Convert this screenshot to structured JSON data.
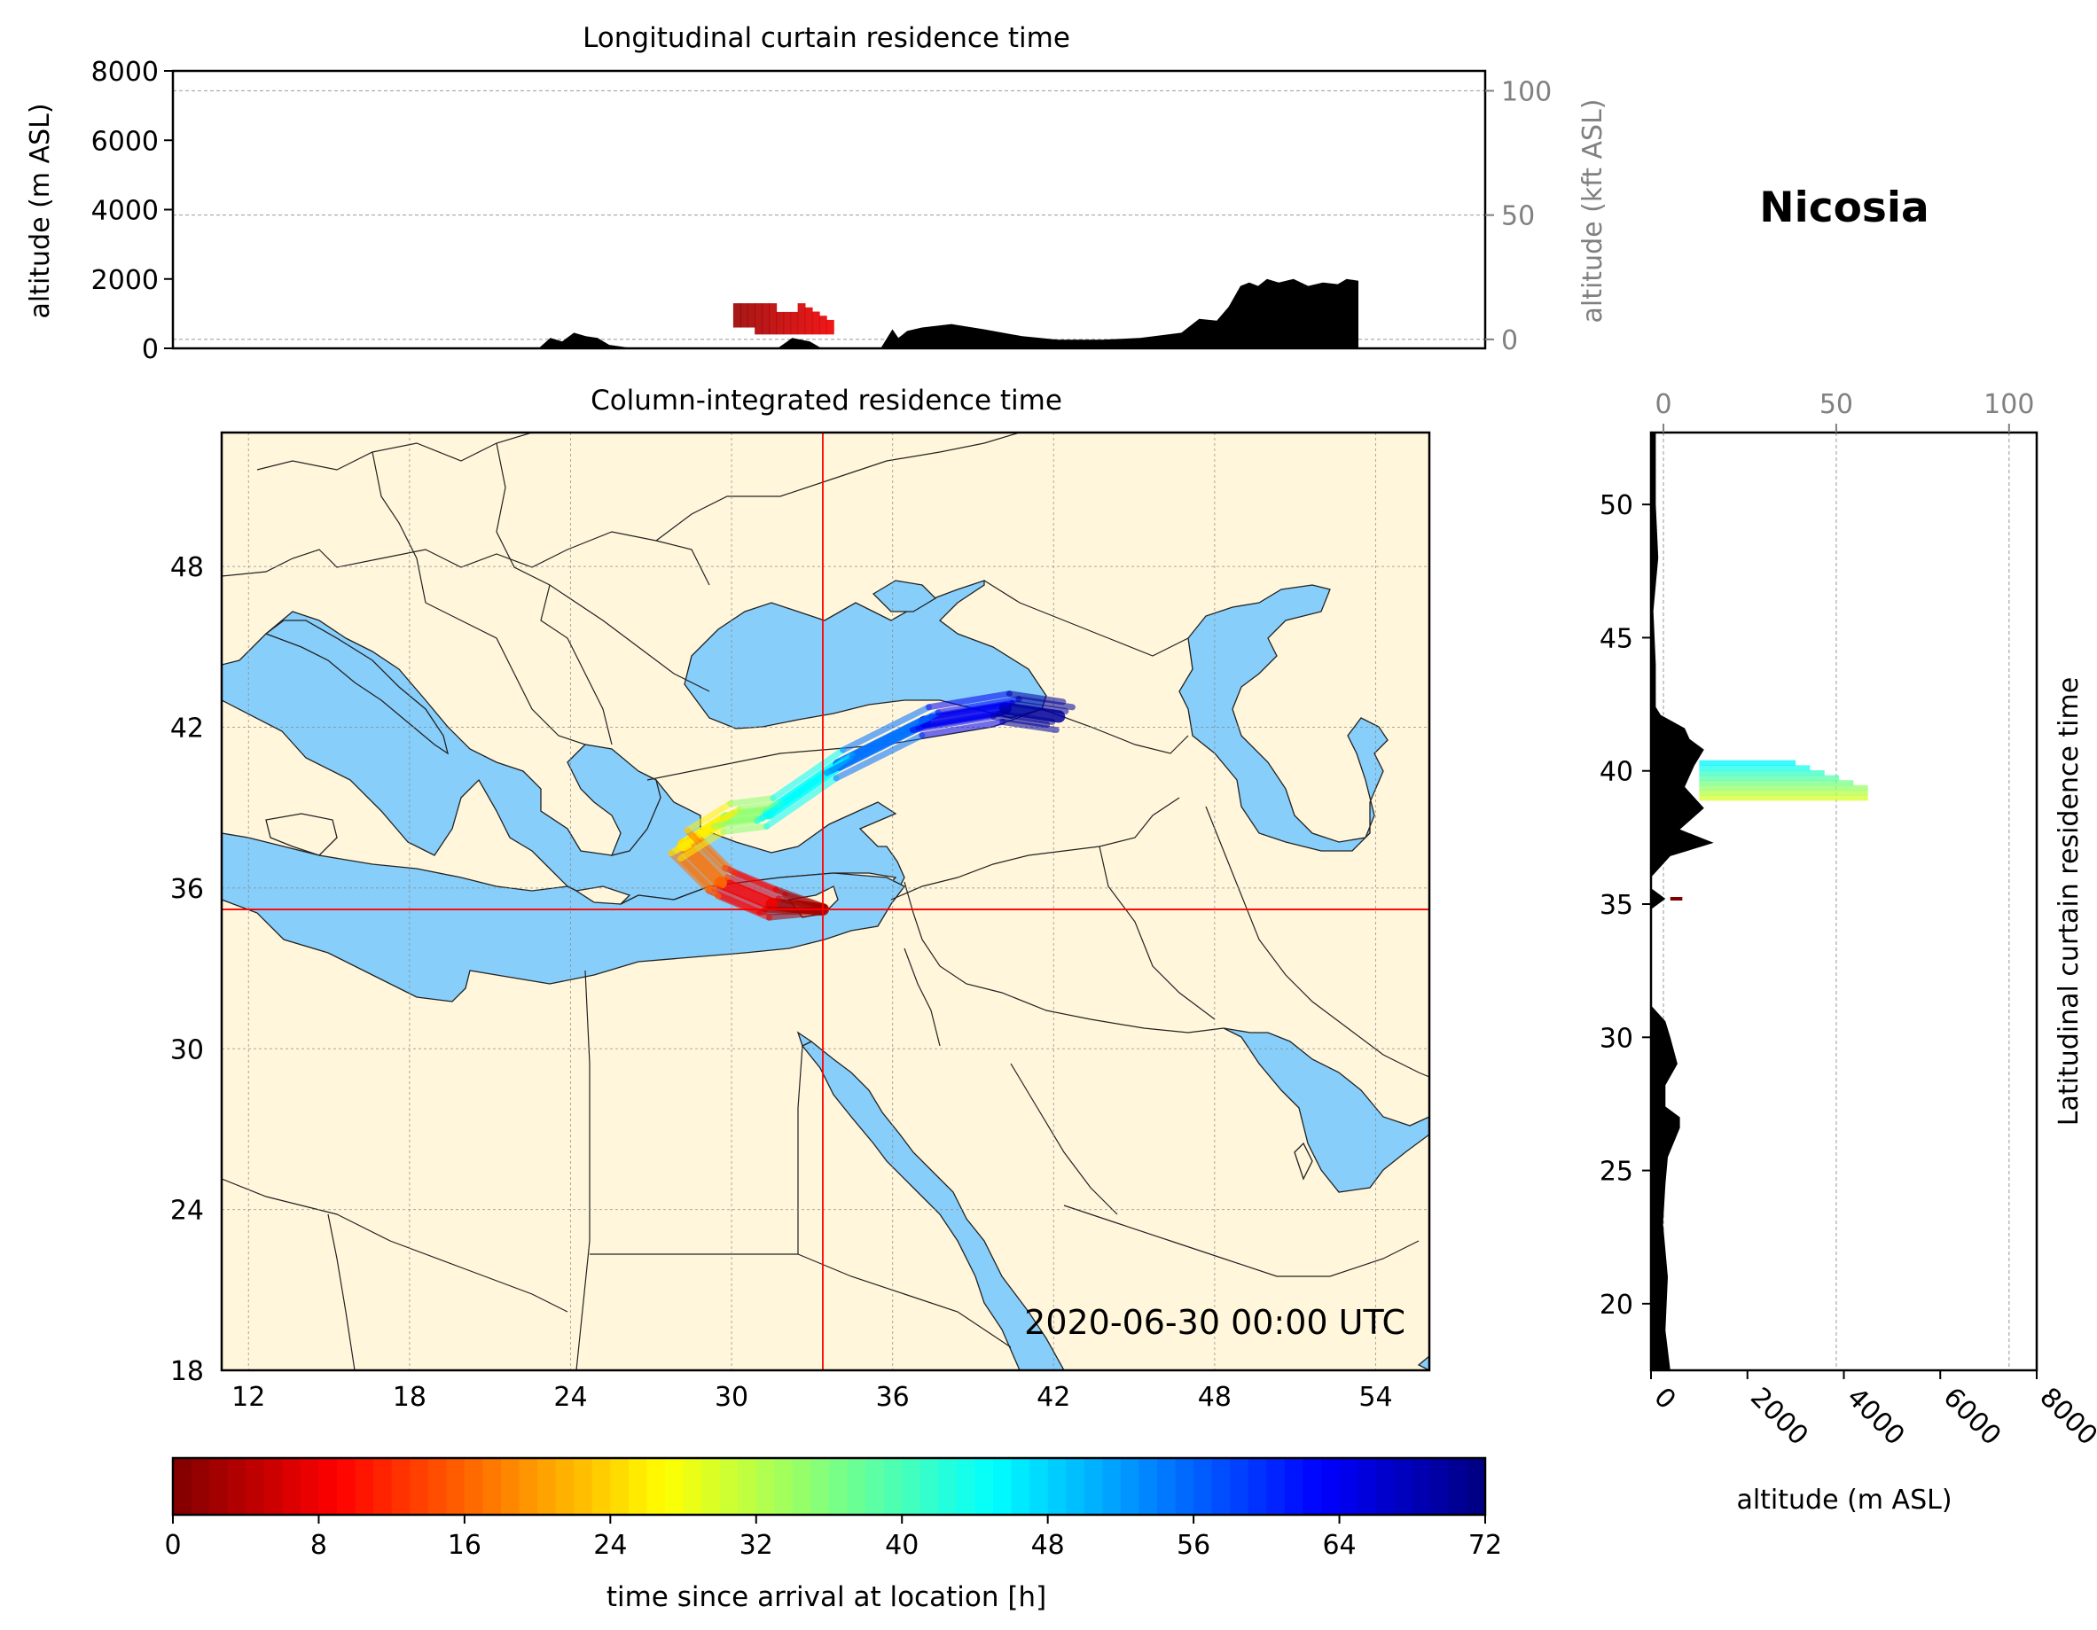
{
  "location_title": "Nicosia",
  "timestamp_label": "2020-06-30 00:00 UTC",
  "colors": {
    "land": "#fff6db",
    "water": "#87cefa",
    "border": "#222222",
    "crosshair": "#ff0000",
    "terrain": "#000000",
    "secondary_axis": "#808080"
  },
  "chart_data": [
    {
      "panel": "top-curtain",
      "type": "area",
      "title": "Longitudinal curtain residence time",
      "ylabel": "altitude (m ASL)",
      "y2label": "altitude (kft ASL)",
      "ylim": [
        0,
        8000
      ],
      "y2lim": [
        -3.6,
        108
      ],
      "yticks": [
        "0",
        "2000",
        "4000",
        "6000",
        "8000"
      ],
      "y2ticks": [
        "0",
        "50",
        "100"
      ],
      "xlim": [
        11,
        55.5
      ],
      "grid": true,
      "terrain_profile": {
        "x": [
          11,
          23.4,
          23.8,
          24.2,
          24.6,
          25.0,
          25.4,
          25.8,
          26.2,
          26.6,
          27.0,
          31.5,
          32.0,
          32.6,
          33.0,
          33.6,
          35.0,
          35.4,
          35.6,
          35.9,
          36.4,
          37.4,
          38.5,
          39.8,
          41.0,
          42.5,
          43.8,
          45.2,
          45.8,
          46.4,
          46.8,
          47.2,
          47.5,
          47.8,
          48.1,
          48.5,
          49.0,
          49.5,
          50.0,
          50.5,
          50.8,
          51.2,
          51.2,
          55.5
        ],
        "y": [
          0,
          0,
          300,
          200,
          450,
          350,
          300,
          100,
          50,
          0,
          0,
          0,
          300,
          200,
          0,
          0,
          0,
          550,
          300,
          500,
          600,
          700,
          550,
          350,
          250,
          250,
          300,
          450,
          850,
          800,
          1200,
          1800,
          1900,
          1800,
          2000,
          1900,
          2000,
          1800,
          1900,
          1850,
          2000,
          1950,
          0,
          0
        ]
      },
      "residence_band": {
        "x": [
          30.0,
          33.4
        ],
        "y": [
          400,
          1300
        ],
        "arrival_time_h": [
          2,
          8
        ]
      }
    },
    {
      "panel": "map",
      "type": "heatmap",
      "title": "Column-integrated residence time",
      "xlim": [
        11,
        56
      ],
      "ylim": [
        18,
        53
      ],
      "xticks": [
        "12",
        "18",
        "24",
        "30",
        "36",
        "42",
        "48",
        "54"
      ],
      "yticks": [
        "18",
        "24",
        "30",
        "36",
        "42",
        "48"
      ],
      "grid": true,
      "release_point": {
        "lon": 33.4,
        "lat": 35.2,
        "name": "Nicosia"
      },
      "trajectory_bundle": [
        {
          "lon": 33.4,
          "lat": 35.2,
          "arrival_time_h": 0
        },
        {
          "lon": 31.5,
          "lat": 35.4,
          "arrival_time_h": 5
        },
        {
          "lon": 29.6,
          "lat": 36.2,
          "arrival_time_h": 12
        },
        {
          "lon": 28.2,
          "lat": 37.6,
          "arrival_time_h": 22
        },
        {
          "lon": 29.8,
          "lat": 38.6,
          "arrival_time_h": 30
        },
        {
          "lon": 31.4,
          "lat": 38.8,
          "arrival_time_h": 40
        },
        {
          "lon": 34.0,
          "lat": 40.6,
          "arrival_time_h": 50
        },
        {
          "lon": 37.2,
          "lat": 42.2,
          "arrival_time_h": 60
        },
        {
          "lon": 40.2,
          "lat": 42.7,
          "arrival_time_h": 68
        },
        {
          "lon": 42.2,
          "lat": 42.4,
          "arrival_time_h": 72
        }
      ]
    },
    {
      "panel": "right-curtain",
      "type": "area",
      "ylabel": "Latitudinal curtain residence time",
      "xlabel": "altitude (m ASL)",
      "x2label": "",
      "xlim": [
        0,
        8000
      ],
      "x2lim": [
        -3.6,
        108
      ],
      "xticks": [
        "0",
        "2000",
        "4000",
        "6000",
        "8000"
      ],
      "x2ticks": [
        "0",
        "50",
        "100"
      ],
      "ylim": [
        17.5,
        52.7
      ],
      "yticks": [
        "20",
        "25",
        "30",
        "35",
        "40",
        "45",
        "50"
      ],
      "grid": true,
      "terrain_profile": {
        "lat": [
          17.5,
          19.0,
          21.0,
          23.0,
          24.5,
          25.5,
          26.6,
          27.0,
          27.4,
          28.2,
          29.0,
          30.0,
          30.6,
          31.2,
          34.8,
          35.2,
          35.6,
          36.0,
          36.8,
          37.3,
          37.8,
          38.6,
          39.4,
          40.2,
          40.8,
          41.2,
          41.6,
          42.1,
          42.4,
          44.0,
          46.0,
          48.0,
          50.0,
          52.7
        ],
        "alt": [
          400,
          300,
          350,
          250,
          300,
          350,
          600,
          600,
          300,
          300,
          550,
          400,
          300,
          0,
          0,
          300,
          0,
          0,
          400,
          1300,
          600,
          1100,
          700,
          900,
          1100,
          800,
          700,
          200,
          100,
          100,
          50,
          150,
          100,
          100
        ]
      },
      "residence_band": {
        "lat": [
          38.9,
          40.4
        ],
        "alt": [
          1000,
          4500
        ],
        "arrival_time_h": [
          30,
          48
        ]
      },
      "release_band": {
        "lat": 35.2,
        "alt": [
          400,
          650
        ],
        "arrival_time_h": 0
      }
    },
    {
      "panel": "colorbar",
      "type": "heatmap",
      "label": "time since arrival at location [h]",
      "range": [
        0,
        72
      ],
      "ticks": [
        "0",
        "8",
        "16",
        "24",
        "32",
        "40",
        "48",
        "56",
        "64",
        "72"
      ],
      "colormap": "jet_r"
    }
  ]
}
